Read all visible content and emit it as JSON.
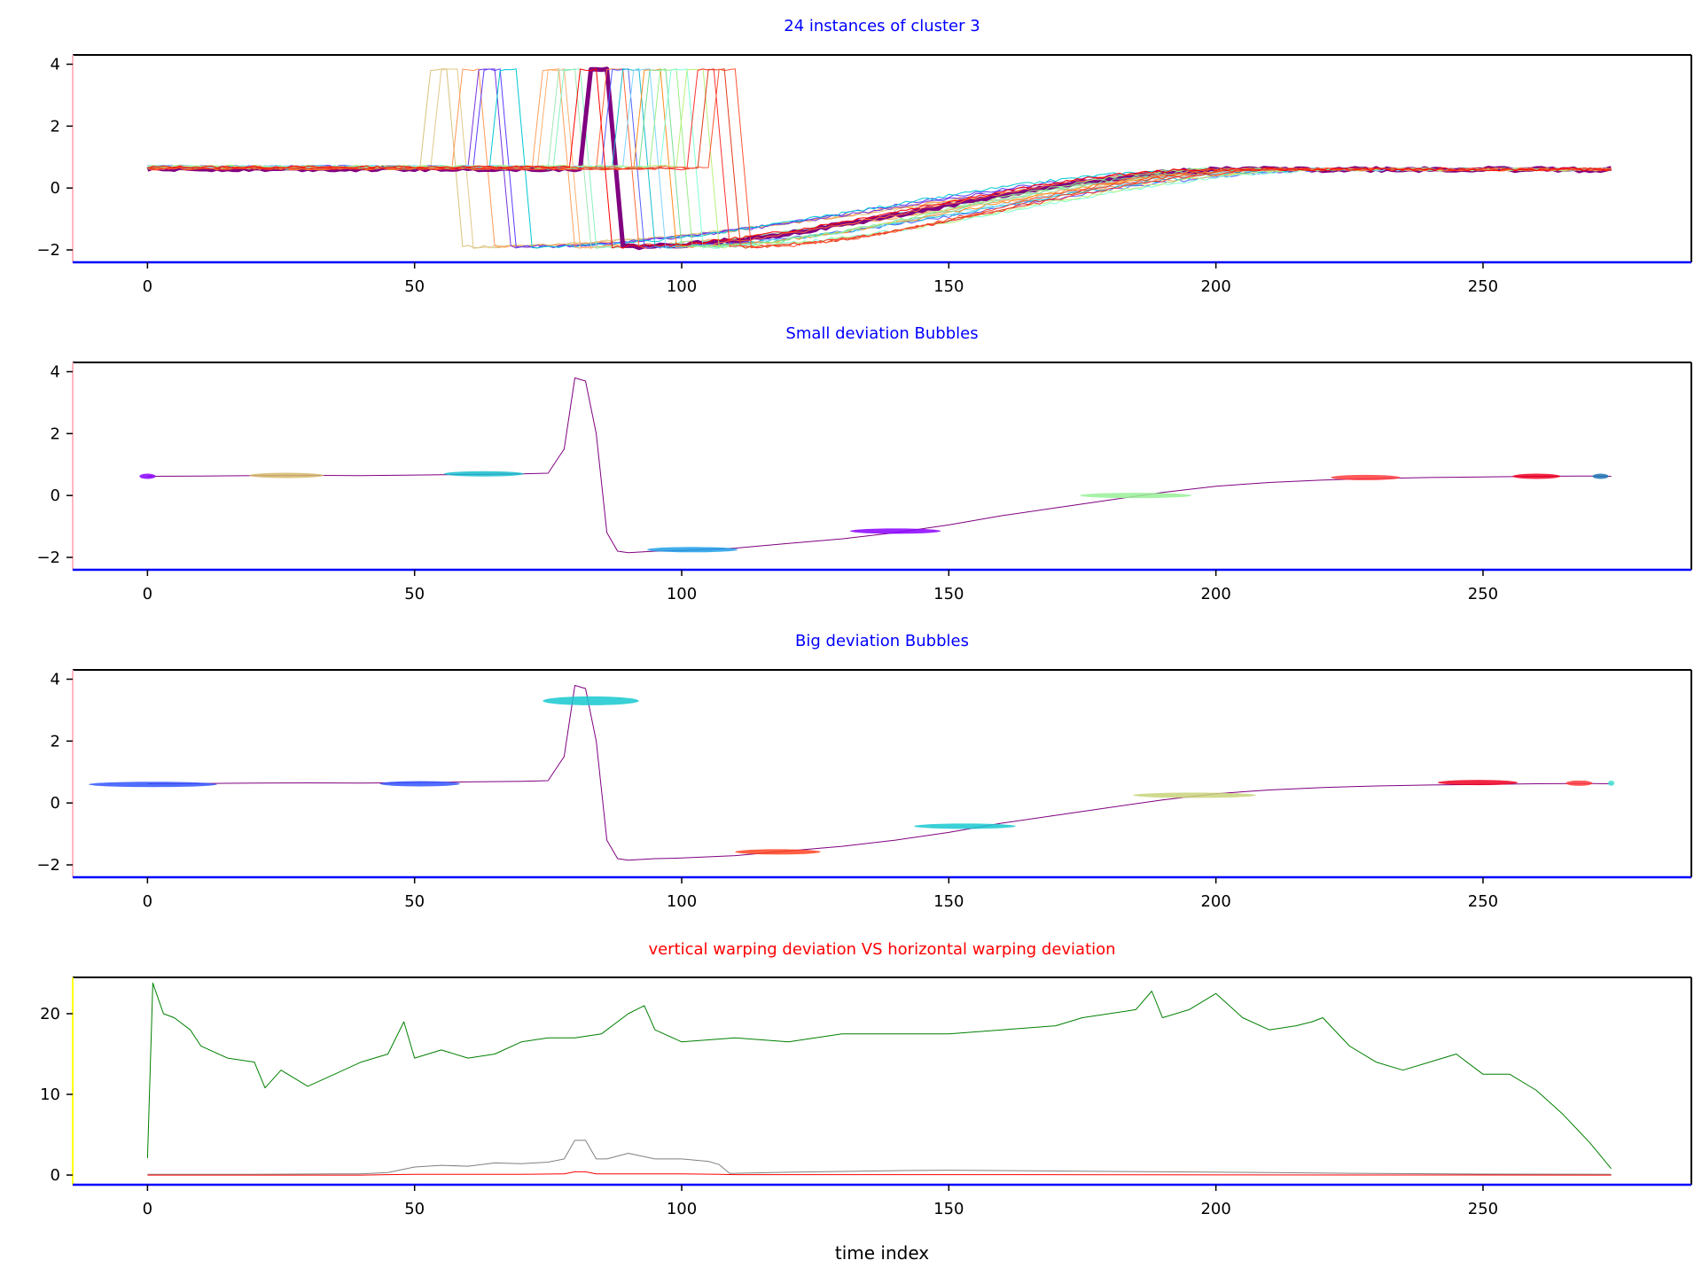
{
  "chart_data": [
    {
      "type": "line",
      "title": "24 instances of cluster 3",
      "title_color": "#0000ff",
      "xlim": [
        -14,
        289
      ],
      "ylim": [
        -2.4,
        4.3
      ],
      "xticks": [
        0,
        50,
        100,
        150,
        200,
        250
      ],
      "yticks": [
        -2,
        0,
        2,
        4
      ],
      "series_count": 24,
      "series": [
        {
          "drop_x": 56,
          "color": "#d6c27a",
          "width": 1
        },
        {
          "drop_x": 58,
          "color": "#e2c98a",
          "width": 1
        },
        {
          "drop_x": 62,
          "color": "#ff9955",
          "width": 1
        },
        {
          "drop_x": 65,
          "color": "#7733dd",
          "width": 1
        },
        {
          "drop_x": 66,
          "color": "#5a3cff",
          "width": 1
        },
        {
          "drop_x": 69,
          "color": "#00c8d2",
          "width": 1
        },
        {
          "drop_x": 77,
          "color": "#ff9f5a",
          "width": 1
        },
        {
          "drop_x": 78,
          "color": "#ffb070",
          "width": 1
        },
        {
          "drop_x": 80,
          "color": "#9fe8b4",
          "width": 1
        },
        {
          "drop_x": 81,
          "color": "#88f0c0",
          "width": 1
        },
        {
          "drop_x": 86,
          "color": "#800080",
          "width": 5
        },
        {
          "drop_x": 89,
          "color": "#ff6a3c",
          "width": 1
        },
        {
          "drop_x": 90,
          "color": "#5560ff",
          "width": 1
        },
        {
          "drop_x": 92,
          "color": "#17becf",
          "width": 1
        },
        {
          "drop_x": 94,
          "color": "#7fd3ff",
          "width": 1
        },
        {
          "drop_x": 96,
          "color": "#ff8c1a",
          "width": 1
        },
        {
          "drop_x": 97,
          "color": "#77dd99",
          "width": 1
        },
        {
          "drop_x": 99,
          "color": "#99ee88",
          "width": 1
        },
        {
          "drop_x": 101,
          "color": "#7fffd4",
          "width": 1
        },
        {
          "drop_x": 104,
          "color": "#b9f07a",
          "width": 1
        },
        {
          "drop_x": 106,
          "color": "#ff3030",
          "width": 1
        },
        {
          "drop_x": 108,
          "color": "#e03c1c",
          "width": 1
        },
        {
          "drop_x": 110,
          "color": "#ff5533",
          "width": 1
        },
        {
          "drop_x": 84,
          "color": "#ff0000",
          "width": 1
        }
      ]
    },
    {
      "type": "line",
      "title": "Small deviation Bubbles",
      "title_color": "#0000ff",
      "xlim": [
        -14,
        289
      ],
      "ylim": [
        -2.4,
        4.3
      ],
      "xticks": [
        0,
        50,
        100,
        150,
        200,
        250
      ],
      "yticks": [
        -2,
        0,
        2,
        4
      ],
      "series": [
        {
          "color": "#800080",
          "width": 1,
          "x": [
            0,
            10,
            20,
            30,
            40,
            50,
            60,
            70,
            75,
            78,
            80,
            82,
            84,
            86,
            88,
            90,
            95,
            100,
            110,
            120,
            130,
            140,
            150,
            160,
            170,
            180,
            190,
            200,
            210,
            220,
            230,
            240,
            250,
            260,
            270,
            274
          ],
          "y": [
            0.62,
            0.63,
            0.64,
            0.65,
            0.64,
            0.66,
            0.68,
            0.7,
            0.72,
            1.5,
            3.8,
            3.7,
            2.0,
            -1.2,
            -1.8,
            -1.85,
            -1.8,
            -1.78,
            -1.7,
            -1.55,
            -1.4,
            -1.2,
            -0.95,
            -0.65,
            -0.4,
            -0.15,
            0.1,
            0.3,
            0.42,
            0.5,
            0.55,
            0.58,
            0.6,
            0.62,
            0.63,
            0.62
          ]
        }
      ],
      "bubbles": [
        {
          "x": 0,
          "y": 0.62,
          "half_width": 1.5,
          "color": "#8a00ff"
        },
        {
          "x": 26,
          "y": 0.65,
          "half_width": 7,
          "color": "#d4b96a"
        },
        {
          "x": 63,
          "y": 0.7,
          "half_width": 7.5,
          "color": "#17becf"
        },
        {
          "x": 102,
          "y": -1.75,
          "half_width": 8.5,
          "color": "#1f9fe8"
        },
        {
          "x": 140,
          "y": -1.15,
          "half_width": 8.5,
          "color": "#8a00ff"
        },
        {
          "x": 185,
          "y": 0.0,
          "half_width": 10.5,
          "color": "#98f098"
        },
        {
          "x": 228,
          "y": 0.58,
          "half_width": 6.5,
          "color": "#ff3c3c"
        },
        {
          "x": 260,
          "y": 0.62,
          "half_width": 4.5,
          "color": "#ee0022"
        },
        {
          "x": 272,
          "y": 0.62,
          "half_width": 1.5,
          "color": "#1f77b4"
        }
      ]
    },
    {
      "type": "line",
      "title": "Big deviation Bubbles",
      "title_color": "#0000ff",
      "xlim": [
        -14,
        289
      ],
      "ylim": [
        -2.4,
        4.3
      ],
      "xticks": [
        0,
        50,
        100,
        150,
        200,
        250
      ],
      "yticks": [
        -2,
        0,
        2,
        4
      ],
      "series": [
        {
          "color": "#800080",
          "width": 1,
          "x": [
            0,
            10,
            20,
            30,
            40,
            50,
            60,
            70,
            75,
            78,
            80,
            82,
            84,
            86,
            88,
            90,
            95,
            100,
            110,
            120,
            130,
            140,
            150,
            160,
            170,
            180,
            190,
            200,
            210,
            220,
            230,
            240,
            250,
            260,
            270,
            274
          ],
          "y": [
            0.62,
            0.63,
            0.64,
            0.65,
            0.64,
            0.66,
            0.68,
            0.7,
            0.72,
            1.5,
            3.8,
            3.7,
            2.0,
            -1.2,
            -1.8,
            -1.85,
            -1.8,
            -1.78,
            -1.7,
            -1.55,
            -1.4,
            -1.2,
            -0.95,
            -0.65,
            -0.4,
            -0.15,
            0.1,
            0.3,
            0.42,
            0.5,
            0.55,
            0.58,
            0.6,
            0.62,
            0.63,
            0.62
          ]
        }
      ],
      "bubbles": [
        {
          "x": 1,
          "y": 0.6,
          "half_width": 12,
          "color": "#3355ff"
        },
        {
          "x": 51,
          "y": 0.62,
          "half_width": 7.5,
          "color": "#3355ff"
        },
        {
          "x": 83,
          "y": 3.3,
          "half_width": 9,
          "color": "#17c8d0"
        },
        {
          "x": 118,
          "y": -1.58,
          "half_width": 8,
          "color": "#ff4422"
        },
        {
          "x": 153,
          "y": -0.75,
          "half_width": 9.5,
          "color": "#17c8d0"
        },
        {
          "x": 196,
          "y": 0.25,
          "half_width": 11.5,
          "color": "#c8d47a"
        },
        {
          "x": 249,
          "y": 0.66,
          "half_width": 7.5,
          "color": "#ee0022"
        },
        {
          "x": 268,
          "y": 0.64,
          "half_width": 2.5,
          "color": "#ff3c3c"
        },
        {
          "x": 274,
          "y": 0.64,
          "half_width": 0.6,
          "color": "#40e0d0"
        }
      ]
    },
    {
      "type": "line",
      "title": "vertical warping deviation VS horizontal warping deviation",
      "title_color": "#ff0000",
      "xlabel": "time index",
      "xlim": [
        -14,
        289
      ],
      "ylim": [
        -1.2,
        24.5
      ],
      "xticks": [
        0,
        50,
        100,
        150,
        200,
        250
      ],
      "yticks": [
        0,
        10,
        20
      ],
      "series": [
        {
          "color": "#008000",
          "width": 1,
          "x": [
            0,
            1,
            3,
            5,
            8,
            10,
            15,
            20,
            22,
            25,
            30,
            35,
            40,
            45,
            48,
            50,
            55,
            60,
            65,
            70,
            75,
            80,
            85,
            90,
            93,
            95,
            100,
            110,
            120,
            130,
            140,
            150,
            160,
            170,
            175,
            180,
            185,
            188,
            190,
            195,
            200,
            205,
            210,
            215,
            218,
            220,
            225,
            230,
            235,
            240,
            245,
            250,
            255,
            260,
            265,
            270,
            274
          ],
          "y": [
            2.1,
            23.8,
            20.0,
            19.5,
            18.0,
            16.0,
            14.5,
            14.0,
            10.8,
            13.0,
            11.0,
            12.5,
            14.0,
            15.0,
            19.0,
            14.5,
            15.5,
            14.5,
            15.0,
            16.5,
            17.0,
            17.0,
            17.5,
            20.0,
            21.0,
            18.0,
            16.5,
            17.0,
            16.5,
            17.5,
            17.5,
            17.5,
            18.0,
            18.5,
            19.5,
            20.0,
            20.5,
            22.8,
            19.5,
            20.5,
            22.5,
            19.5,
            18.0,
            18.5,
            19.0,
            19.5,
            16.0,
            14.0,
            13.0,
            14.0,
            15.0,
            12.5,
            12.5,
            10.5,
            7.5,
            4.0,
            0.8
          ]
        },
        {
          "color": "#808080",
          "width": 1,
          "x": [
            0,
            20,
            40,
            45,
            50,
            55,
            60,
            65,
            70,
            75,
            78,
            80,
            82,
            84,
            86,
            90,
            95,
            100,
            105,
            107,
            109,
            120,
            140,
            150,
            170,
            190,
            210,
            230,
            250,
            274
          ],
          "y": [
            0.1,
            0.1,
            0.15,
            0.3,
            1.0,
            1.2,
            1.1,
            1.5,
            1.4,
            1.6,
            2.0,
            4.3,
            4.3,
            2.0,
            2.0,
            2.7,
            2.0,
            2.0,
            1.7,
            1.3,
            0.2,
            0.35,
            0.55,
            0.6,
            0.5,
            0.4,
            0.3,
            0.2,
            0.12,
            0.1
          ]
        },
        {
          "color": "#ff0000",
          "width": 1,
          "x": [
            0,
            40,
            45,
            50,
            70,
            78,
            80,
            82,
            84,
            100,
            107,
            110,
            150,
            200,
            274
          ],
          "y": [
            0.0,
            0.0,
            0.05,
            0.1,
            0.1,
            0.15,
            0.4,
            0.4,
            0.15,
            0.15,
            0.1,
            0.05,
            0.05,
            0.02,
            0.0
          ]
        }
      ]
    }
  ]
}
